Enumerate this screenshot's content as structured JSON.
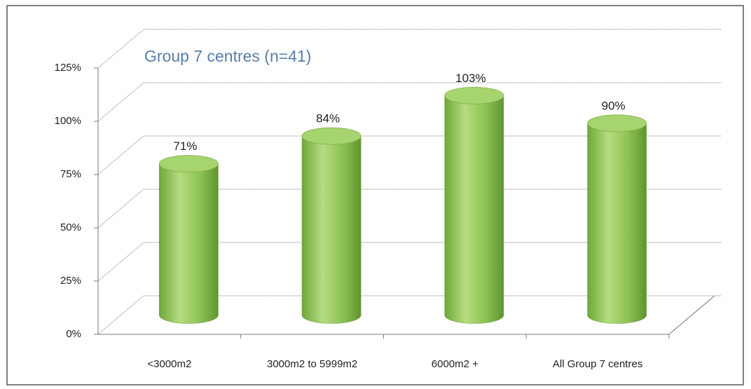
{
  "chart_data": {
    "type": "bar3d",
    "title": "Group 7 centres (n=41)",
    "categories": [
      "<3000m2",
      "3000m2 to 5999m2",
      "6000m2 +",
      "All Group 7 centres"
    ],
    "values": [
      71,
      84,
      103,
      90
    ],
    "value_labels": [
      "71%",
      "84%",
      "103%",
      "90%"
    ],
    "color": "#8cc152",
    "ylim": [
      0,
      125
    ],
    "yticks": [
      {
        "value": 0,
        "label": "0%"
      },
      {
        "value": 25,
        "label": "25%"
      },
      {
        "value": 50,
        "label": "50%"
      },
      {
        "value": 75,
        "label": "75%"
      },
      {
        "value": 100,
        "label": "100%"
      },
      {
        "value": 125,
        "label": "125%"
      }
    ],
    "grid": true
  }
}
